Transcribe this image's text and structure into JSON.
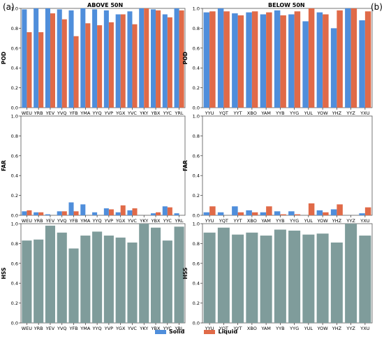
{
  "figure": {
    "panel_left_label": "(a)",
    "panel_right_label": "(b)",
    "left_title": "ABOVE 50N",
    "right_title": "BELOW 50N"
  },
  "legend": {
    "solid_label": "Solid",
    "liquid_label": "Liquid",
    "solid_color": "#4f8edb",
    "liquid_color": "#e06a48"
  },
  "colors": {
    "hss": "#7f9c9b"
  },
  "chart_data": [
    {
      "type": "bar",
      "panel": "left",
      "ylabel": "POD",
      "ylim": [
        0,
        1.0
      ],
      "categories": [
        "WEU",
        "YRB",
        "YEV",
        "YVQ",
        "YFB",
        "YMA",
        "YYQ",
        "YVP",
        "YGX",
        "YVC",
        "YKY",
        "YBX",
        "YYC",
        "YRL"
      ],
      "series": [
        {
          "name": "Solid",
          "values": [
            0.99,
            1.0,
            1.0,
            0.99,
            0.98,
            1.0,
            0.99,
            0.98,
            0.94,
            0.97,
            1.0,
            0.99,
            0.94,
            1.0
          ]
        },
        {
          "name": "Liquid",
          "values": [
            0.76,
            0.76,
            0.95,
            0.89,
            0.72,
            0.85,
            0.83,
            0.86,
            0.94,
            0.84,
            1.0,
            0.98,
            0.91,
            0.98
          ]
        }
      ]
    },
    {
      "type": "bar",
      "panel": "right",
      "ylabel": "POD",
      "ylim": [
        0,
        1.0
      ],
      "categories": [
        "YYU",
        "YQT",
        "YYT",
        "XBO",
        "YAM",
        "YYB",
        "YYG",
        "YUL",
        "YOW",
        "YHZ",
        "YYZ",
        "YXU"
      ],
      "series": [
        {
          "name": "Solid",
          "values": [
            0.96,
            1.0,
            0.95,
            0.96,
            0.94,
            0.98,
            0.94,
            0.87,
            0.96,
            0.8,
            1.0,
            0.88
          ]
        },
        {
          "name": "Liquid",
          "values": [
            0.97,
            0.97,
            0.93,
            0.97,
            0.96,
            0.93,
            0.97,
            1.0,
            0.94,
            0.98,
            1.0,
            0.97
          ]
        }
      ]
    },
    {
      "type": "bar",
      "panel": "left",
      "ylabel": "FAR",
      "ylim": [
        0,
        1.0
      ],
      "categories": [
        "WEU",
        "YRB",
        "YEV",
        "YVQ",
        "YFB",
        "YMA",
        "YYQ",
        "YVP",
        "YGX",
        "YVC",
        "YKY",
        "YBX",
        "YYC",
        "YRL"
      ],
      "series": [
        {
          "name": "Solid",
          "values": [
            0.04,
            0.03,
            0.01,
            0.04,
            0.13,
            0.11,
            0.03,
            0.07,
            0.03,
            0.05,
            0.0,
            0.02,
            0.09,
            0.02
          ]
        },
        {
          "name": "Liquid",
          "values": [
            0.05,
            0.03,
            0.0,
            0.04,
            0.04,
            0.0,
            0.0,
            0.06,
            0.1,
            0.07,
            0.0,
            0.03,
            0.08,
            0.0
          ]
        }
      ]
    },
    {
      "type": "bar",
      "panel": "right",
      "ylabel": "FAR",
      "ylim": [
        0,
        1.0
      ],
      "categories": [
        "YYU",
        "YQT",
        "YYT",
        "XBO",
        "YAM",
        "YYB",
        "YYG",
        "YUL",
        "YOW",
        "YHZ",
        "YYZ",
        "YXU"
      ],
      "series": [
        {
          "name": "Solid",
          "values": [
            0.03,
            0.03,
            0.09,
            0.05,
            0.03,
            0.04,
            0.04,
            0.0,
            0.05,
            0.06,
            0.0,
            0.02
          ]
        },
        {
          "name": "Liquid",
          "values": [
            0.09,
            0.0,
            0.03,
            0.03,
            0.09,
            0.01,
            0.01,
            0.12,
            0.03,
            0.11,
            0.0,
            0.08
          ]
        }
      ]
    },
    {
      "type": "bar",
      "panel": "left",
      "ylabel": "HSS",
      "ylim": [
        0,
        1.0
      ],
      "categories": [
        "WEU",
        "YRB",
        "YEV",
        "YVQ",
        "YFB",
        "YMA",
        "YYQ",
        "YVP",
        "YGX",
        "YVC",
        "YKY",
        "YBX",
        "YYC",
        "YRL"
      ],
      "series": [
        {
          "values": [
            0.83,
            0.84,
            0.98,
            0.91,
            0.75,
            0.88,
            0.92,
            0.88,
            0.86,
            0.81,
            1.0,
            0.96,
            0.83,
            0.97
          ]
        }
      ]
    },
    {
      "type": "bar",
      "panel": "right",
      "ylabel": "HSS",
      "ylim": [
        0,
        1.0
      ],
      "categories": [
        "YYU",
        "YQT",
        "YYT",
        "XBO",
        "YAM",
        "YYB",
        "YYG",
        "YUL",
        "YOW",
        "YHZ",
        "YYZ",
        "YXU"
      ],
      "series": [
        {
          "values": [
            0.91,
            0.96,
            0.89,
            0.91,
            0.88,
            0.94,
            0.93,
            0.89,
            0.9,
            0.81,
            1.0,
            0.88
          ]
        }
      ]
    }
  ]
}
